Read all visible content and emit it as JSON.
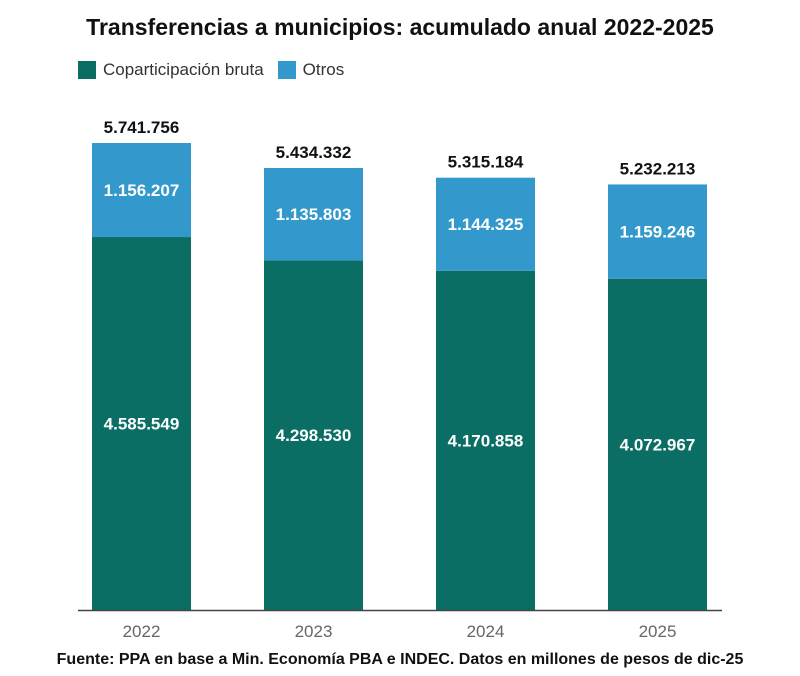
{
  "chart_data": {
    "type": "bar",
    "stacked": true,
    "title": "Transferencias a municipios: acumulado anual 2022-2025",
    "categories": [
      "2022",
      "2023",
      "2024",
      "2025"
    ],
    "series": [
      {
        "name": "Coparticipación bruta",
        "color": "#0a6e64",
        "values": [
          4585549,
          4298530,
          4170858,
          4072967
        ],
        "labels": [
          "4.585.549",
          "4.298.530",
          "4.170.858",
          "4.072.967"
        ]
      },
      {
        "name": "Otros",
        "color": "#3399cc",
        "values": [
          1156207,
          1135803,
          1144325,
          1159246
        ],
        "labels": [
          "1.156.207",
          "1.135.803",
          "1.144.325",
          "1.159.246"
        ]
      }
    ],
    "totals": [
      5741756,
      5434332,
      5315184,
      5232213
    ],
    "total_labels": [
      "5.741.756",
      "5.434.332",
      "5.315.184",
      "5.232.213"
    ],
    "ylim": [
      0,
      5741756
    ],
    "grid": false,
    "legend_position": "top-left"
  },
  "footer": {
    "source": "Fuente: PPA en base a Min. Economía PBA e INDEC. Datos en millones de pesos de dic-25"
  }
}
